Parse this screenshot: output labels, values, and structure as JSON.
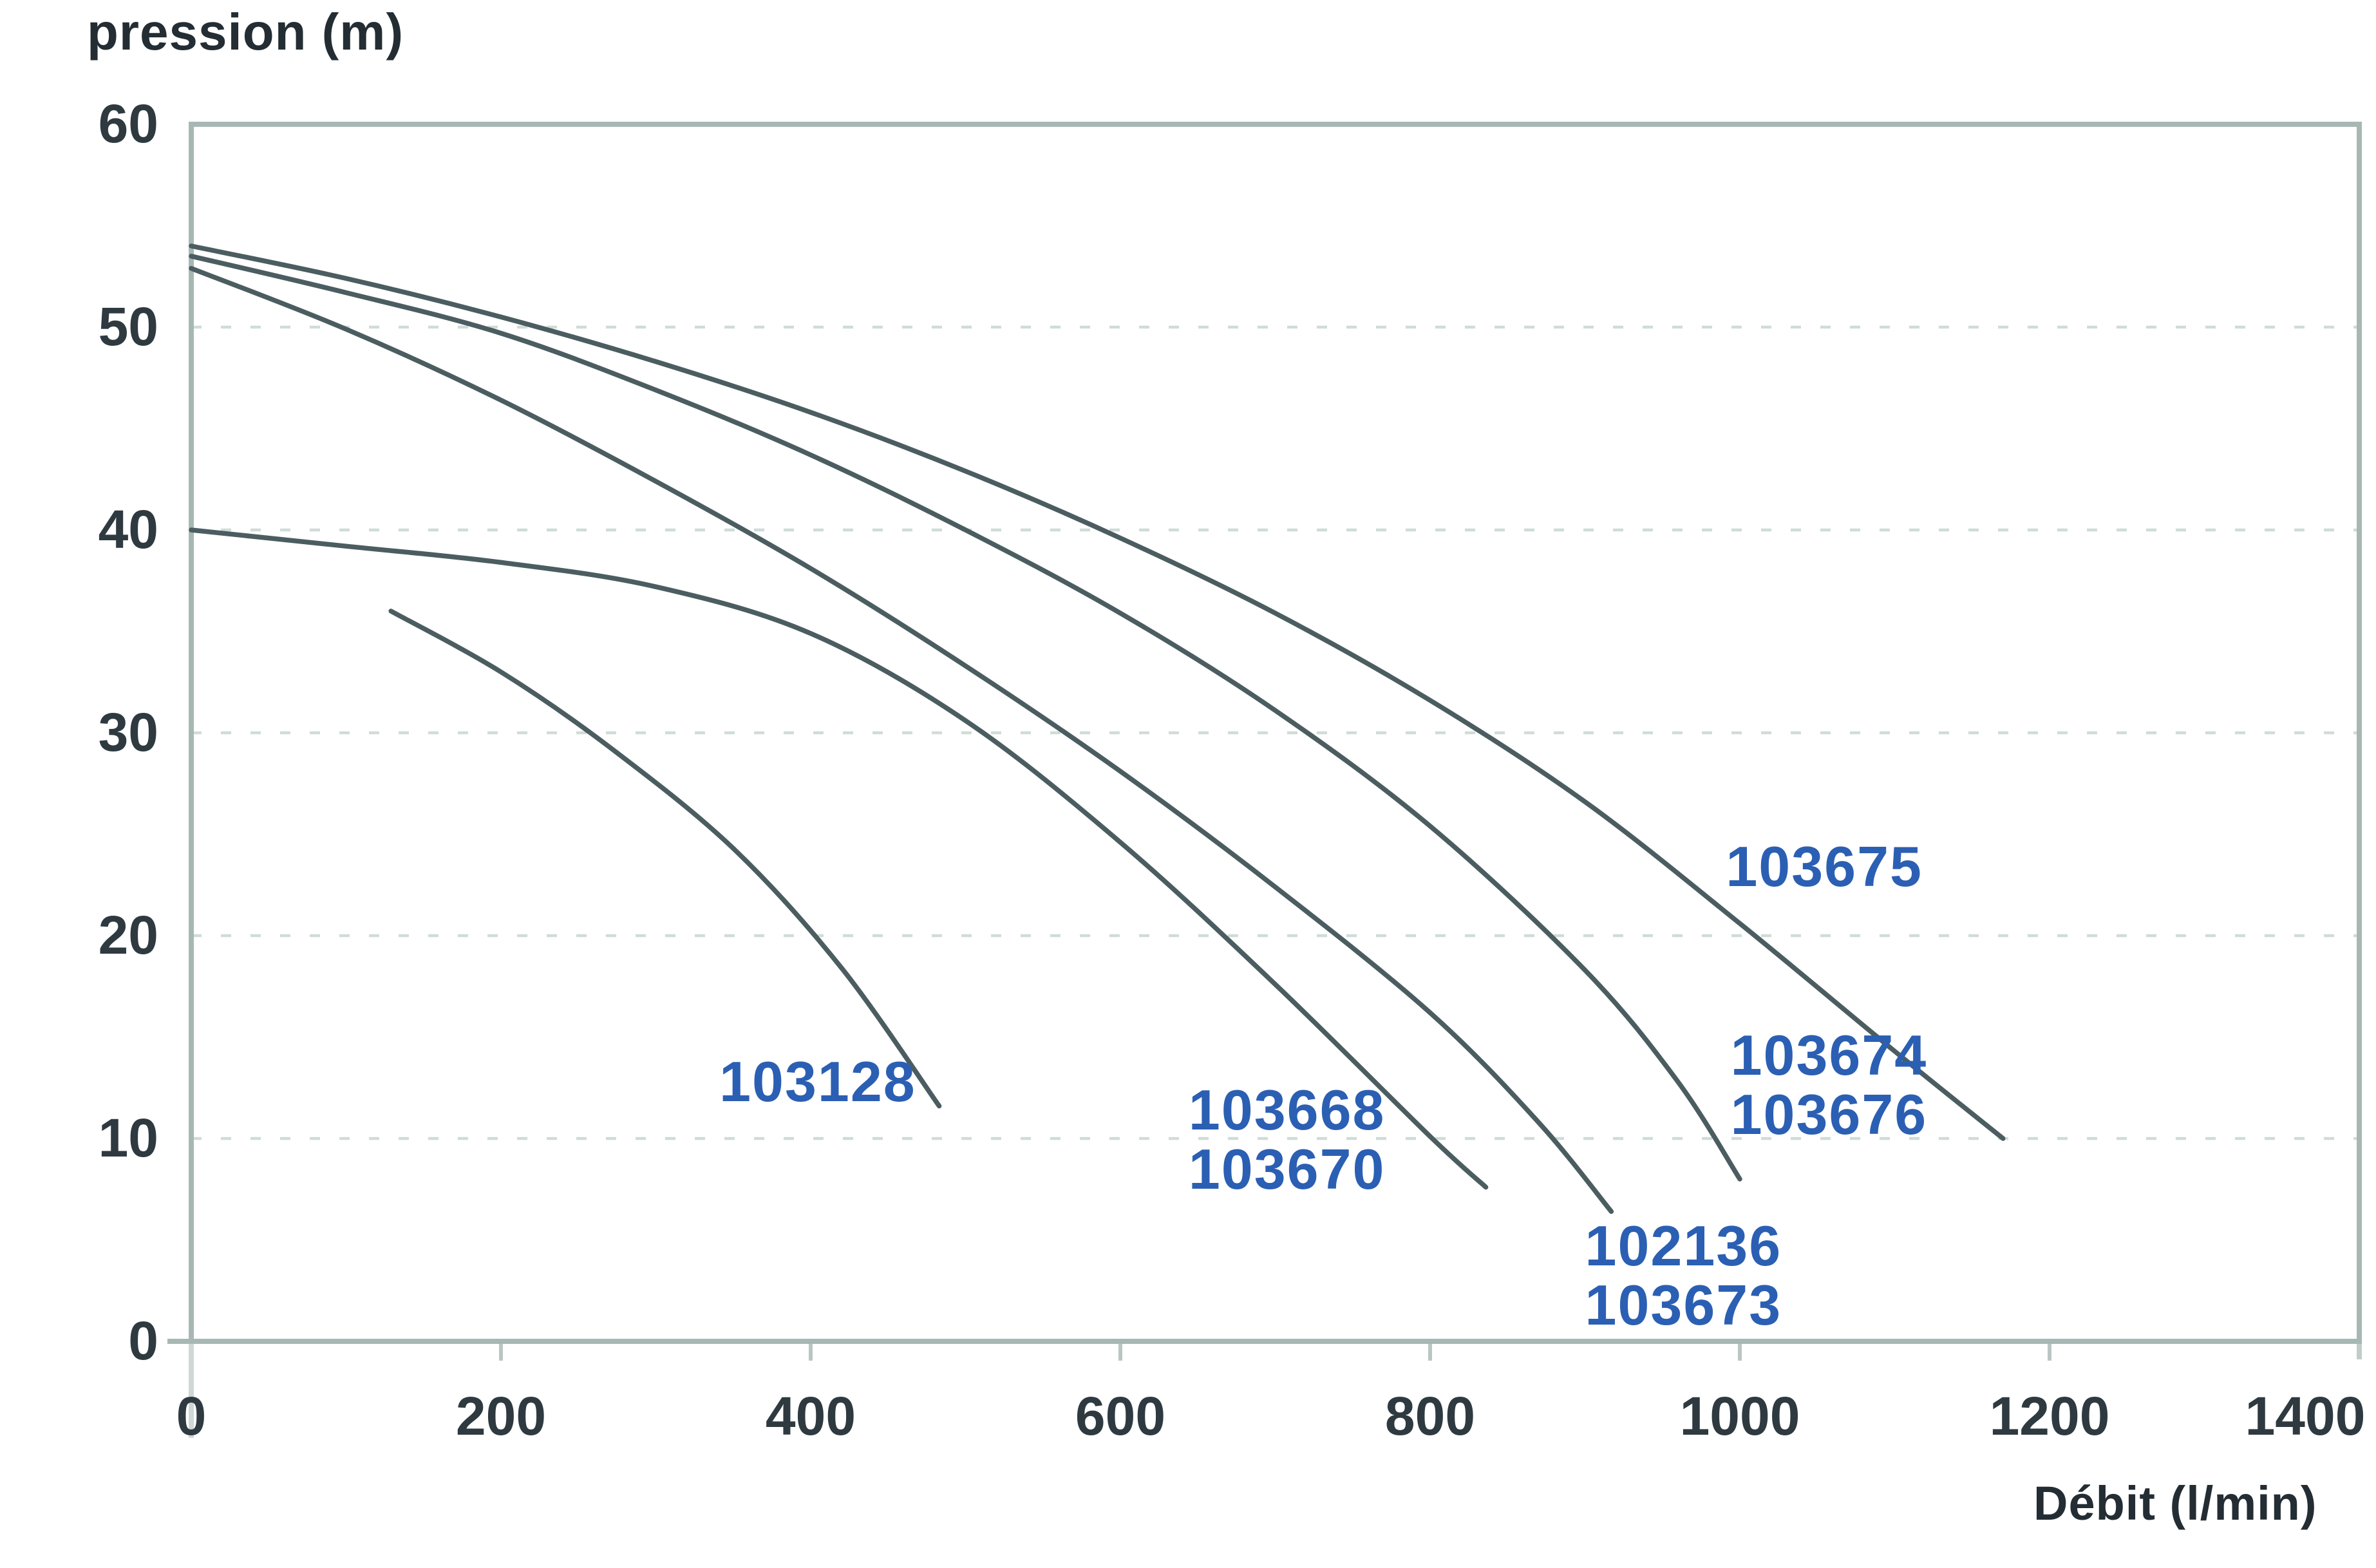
{
  "page": {
    "background": "#ffffff"
  },
  "chart_data": {
    "type": "line",
    "title_y": "pression (m)",
    "title_x": "Débit (l/min)",
    "xlabel": "Débit (l/min)",
    "ylabel": "pression (m)",
    "x_range": [
      0,
      1400
    ],
    "y_range": [
      0,
      60
    ],
    "x_ticks": [
      0,
      200,
      400,
      600,
      800,
      1000,
      1200,
      1400
    ],
    "y_ticks": [
      0,
      10,
      20,
      30,
      40,
      50,
      60
    ],
    "grid": "horizontal-dashed",
    "legend_position": "inline-annotations",
    "colors": {
      "curve": "#4b5d60",
      "axis": "#a7b8b4",
      "grid": "#cfdcd8",
      "annotation_blue": "#2b5fb3",
      "tick_text": "#2e3a40",
      "title_text": "#232d33"
    },
    "series": [
      {
        "name": "103675",
        "points": [
          [
            0,
            54
          ],
          [
            100,
            52.4
          ],
          [
            200,
            50.5
          ],
          [
            300,
            48.3
          ],
          [
            400,
            45.8
          ],
          [
            500,
            42.9
          ],
          [
            600,
            39.6
          ],
          [
            700,
            35.9
          ],
          [
            800,
            31.6
          ],
          [
            900,
            26.6
          ],
          [
            1000,
            20.6
          ],
          [
            1100,
            14.3
          ],
          [
            1170,
            10
          ]
        ]
      },
      {
        "name": "103674 / 103676",
        "points": [
          [
            0,
            53.5
          ],
          [
            100,
            51.7
          ],
          [
            200,
            49.7
          ],
          [
            300,
            46.9
          ],
          [
            400,
            43.7
          ],
          [
            500,
            40
          ],
          [
            600,
            35.9
          ],
          [
            700,
            31.1
          ],
          [
            800,
            25.4
          ],
          [
            900,
            18.3
          ],
          [
            960,
            12.8
          ],
          [
            1000,
            8
          ]
        ]
      },
      {
        "name": "102136 / 103673",
        "points": [
          [
            0,
            52.9
          ],
          [
            100,
            49.9
          ],
          [
            200,
            46.4
          ],
          [
            300,
            42.4
          ],
          [
            400,
            38.1
          ],
          [
            500,
            33.3
          ],
          [
            600,
            28.1
          ],
          [
            700,
            22.4
          ],
          [
            800,
            16.2
          ],
          [
            870,
            10.8
          ],
          [
            917,
            6.4
          ]
        ]
      },
      {
        "name": "103668 / 103670",
        "points": [
          [
            0,
            40
          ],
          [
            100,
            39.2
          ],
          [
            200,
            38.4
          ],
          [
            300,
            37.2
          ],
          [
            400,
            34.9
          ],
          [
            500,
            30.6
          ],
          [
            600,
            24.6
          ],
          [
            700,
            17.6
          ],
          [
            800,
            10.1
          ],
          [
            836,
            7.6
          ]
        ]
      },
      {
        "name": "103128",
        "points": [
          [
            129,
            36
          ],
          [
            200,
            33
          ],
          [
            270,
            29.3
          ],
          [
            350,
            24.3
          ],
          [
            420,
            18.4
          ],
          [
            483,
            11.6
          ]
        ]
      }
    ],
    "annotations": [
      {
        "lines": [
          "103675"
        ],
        "x": 991,
        "y": 24.6
      },
      {
        "lines": [
          "103674",
          "103676"
        ],
        "x": 994,
        "y": 15.3
      },
      {
        "lines": [
          "102136",
          "103673"
        ],
        "x": 900,
        "y": 5.9
      },
      {
        "lines": [
          "103668",
          "103670"
        ],
        "x": 644,
        "y": 12.6
      },
      {
        "lines": [
          "103128"
        ],
        "x": 341,
        "y": 14.0
      }
    ]
  }
}
